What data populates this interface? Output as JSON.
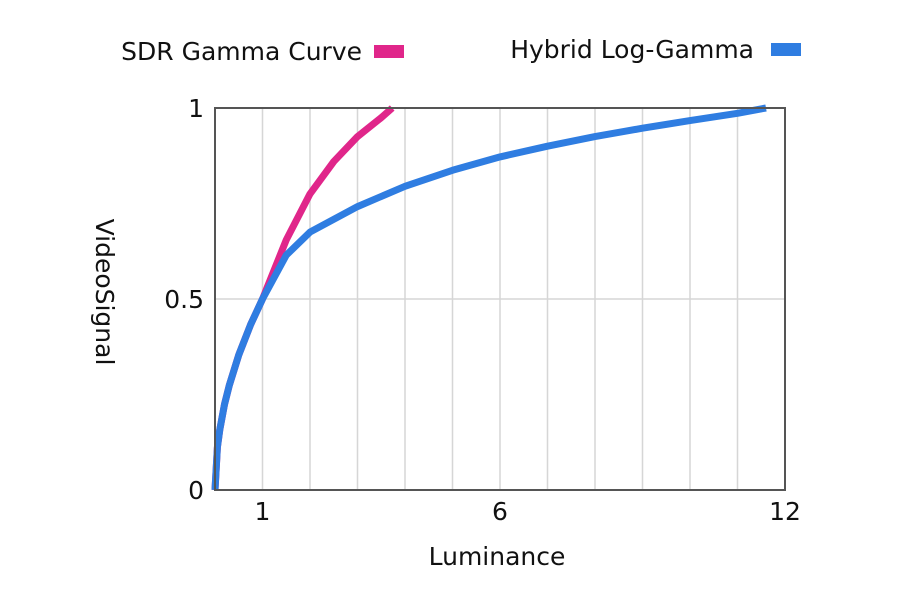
{
  "chart_data": {
    "type": "line",
    "title": "",
    "xlabel": "Luminance",
    "ylabel": "VideoSignal",
    "xlim": [
      0,
      12
    ],
    "ylim": [
      0,
      1
    ],
    "xticks": [
      {
        "value": 1,
        "label": "1"
      },
      {
        "value": 6,
        "label": "6"
      },
      {
        "value": 12,
        "label": "12"
      }
    ],
    "yticks": [
      {
        "value": 0,
        "label": "0"
      },
      {
        "value": 0.5,
        "label": "0.5"
      },
      {
        "value": 1,
        "label": "1"
      }
    ],
    "grid": {
      "vertical_every": 1,
      "horizontal": [
        0.5
      ]
    },
    "legend_position": "top",
    "series": [
      {
        "name": "SDR Gamma Curve",
        "color": "#e0268a",
        "x": [
          0,
          0.05,
          0.1,
          0.2,
          0.3,
          0.5,
          0.75,
          1,
          1.5,
          2,
          2.5,
          3,
          3.5,
          3.73
        ],
        "y": [
          0,
          0.112,
          0.158,
          0.224,
          0.274,
          0.354,
          0.433,
          0.5,
          0.655,
          0.775,
          0.86,
          0.925,
          0.975,
          1.0
        ]
      },
      {
        "name": "Hybrid Log-Gamma",
        "color": "#2f7de1",
        "x": [
          0,
          0.05,
          0.1,
          0.2,
          0.3,
          0.5,
          0.75,
          1,
          1.5,
          2,
          3,
          4,
          5,
          6,
          7,
          8,
          9,
          10,
          11,
          11.6
        ],
        "y": [
          0,
          0.112,
          0.158,
          0.224,
          0.274,
          0.354,
          0.433,
          0.5,
          0.615,
          0.675,
          0.742,
          0.795,
          0.837,
          0.872,
          0.9,
          0.925,
          0.947,
          0.967,
          0.986,
          1.0
        ]
      }
    ]
  }
}
